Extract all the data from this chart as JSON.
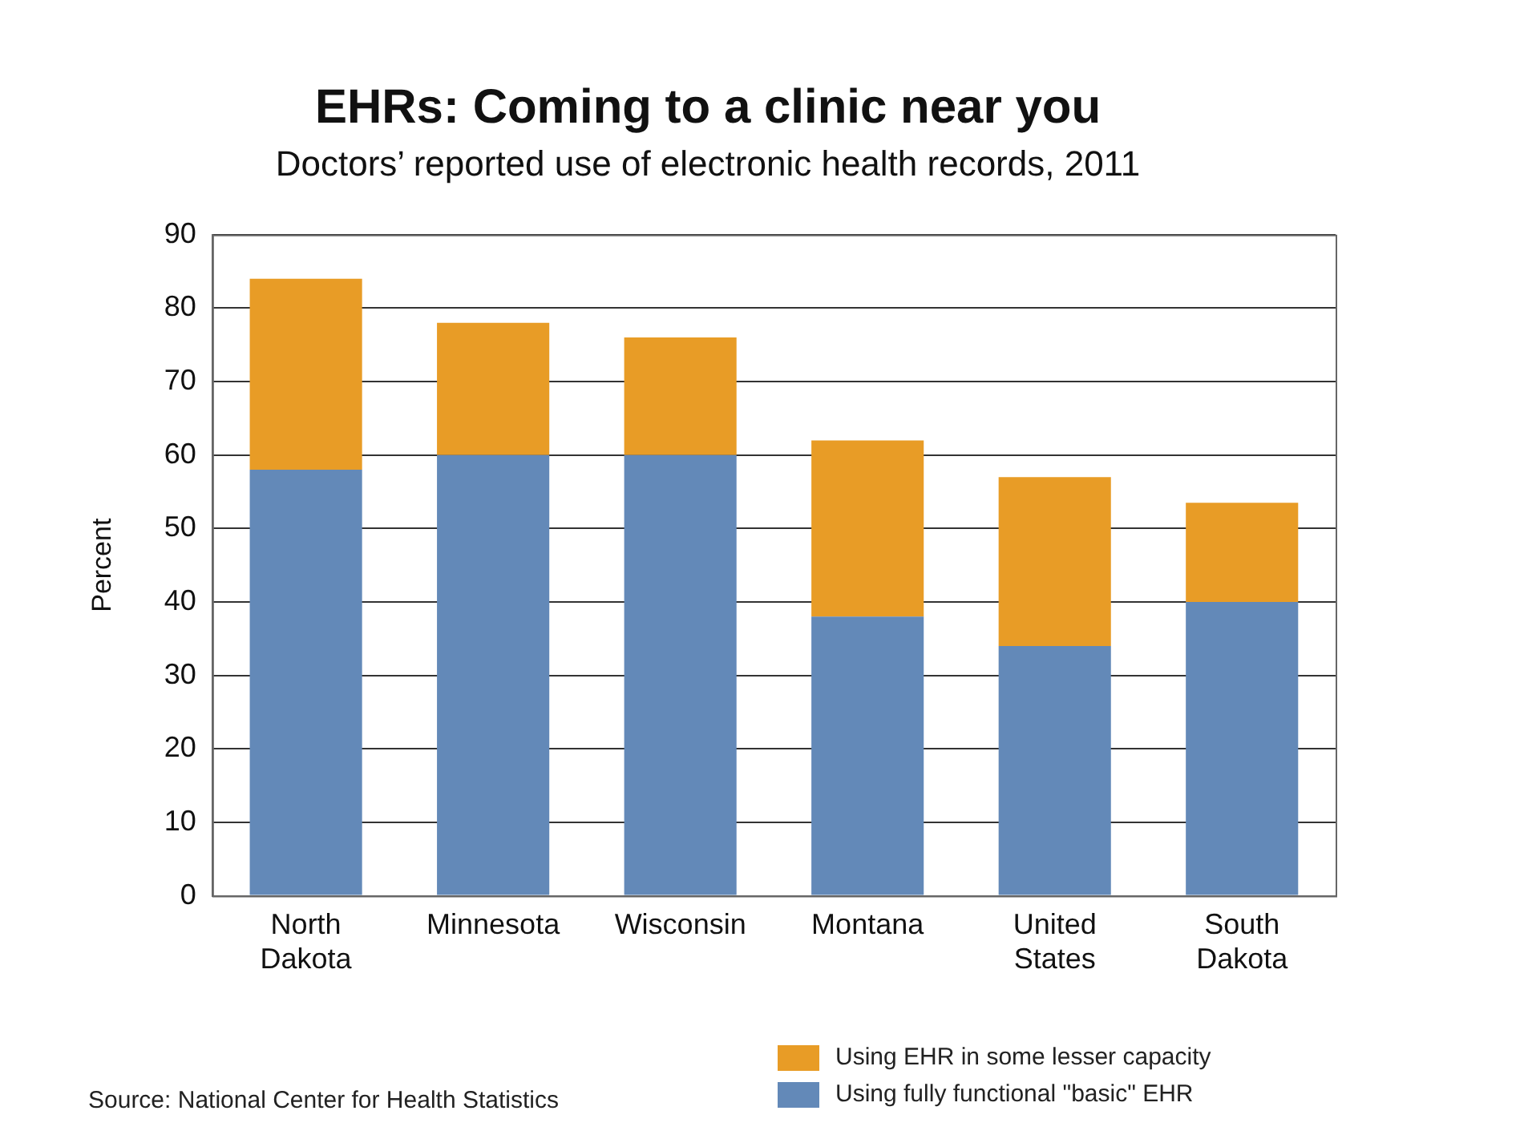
{
  "chart_data": {
    "type": "bar",
    "title": "EHRs: Coming to a clinic near you",
    "subtitle": "Doctors’ reported use of electronic health records, 2011",
    "ylabel": "Percent",
    "categories": [
      "North Dakota",
      "Minnesota",
      "Wisconsin",
      "Montana",
      "United States",
      "South Dakota"
    ],
    "series": [
      {
        "name": "Using fully functional \"basic\" EHR",
        "color": "#6389b8",
        "values": [
          58,
          60,
          60,
          38,
          34,
          40
        ]
      },
      {
        "name": "Using EHR in some lesser capacity",
        "color": "#e89c26",
        "values": [
          26,
          18,
          16,
          24,
          23,
          13.5
        ]
      }
    ],
    "stacked": true,
    "ylim": [
      0,
      90
    ],
    "yticks": [
      0,
      10,
      20,
      30,
      40,
      50,
      60,
      70,
      80,
      90
    ],
    "grid": "y",
    "legend": "bottom right",
    "annotations": [
      "Source: National Center for Health Statistics"
    ]
  }
}
